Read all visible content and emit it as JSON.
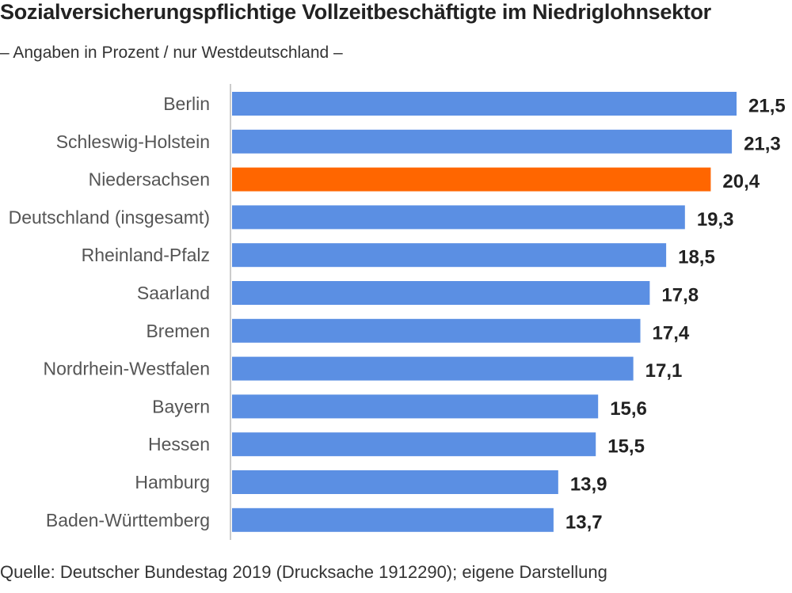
{
  "title": "Sozialversicherungspflichtige Vollzeitbeschäftigte im Niedriglohnsektor",
  "subtitle": "– Angaben in Prozent / nur Westdeutschland –",
  "source": "Quelle: Deutscher Bundestag 2019 (Drucksache 1912290); eigene Darstellung",
  "colors": {
    "default_bar": "#5b8fe3",
    "highlight_bar": "#ff6600",
    "axis": "#cccccc",
    "value_label": "#222222",
    "category_label": "#555555"
  },
  "chart_data": {
    "type": "bar",
    "orientation": "horizontal",
    "categories": [
      "Berlin",
      "Schleswig-Holstein",
      "Niedersachsen",
      "Deutschland (insgesamt)",
      "Rheinland-Pfalz",
      "Saarland",
      "Bremen",
      "Nordrhein-Westfalen",
      "Bayern",
      "Hessen",
      "Hamburg",
      "Baden-Württemberg"
    ],
    "values": [
      21.5,
      21.3,
      20.4,
      19.3,
      18.5,
      17.8,
      17.4,
      17.1,
      15.6,
      15.5,
      13.9,
      13.7
    ],
    "value_labels": [
      "21,5",
      "21,3",
      "20,4",
      "19,3",
      "18,5",
      "17,8",
      "17,4",
      "17,1",
      "15,6",
      "15,5",
      "13,9",
      "13,7"
    ],
    "highlight": "Niedersachsen",
    "xlim": [
      0,
      21.5
    ],
    "grid": false
  }
}
